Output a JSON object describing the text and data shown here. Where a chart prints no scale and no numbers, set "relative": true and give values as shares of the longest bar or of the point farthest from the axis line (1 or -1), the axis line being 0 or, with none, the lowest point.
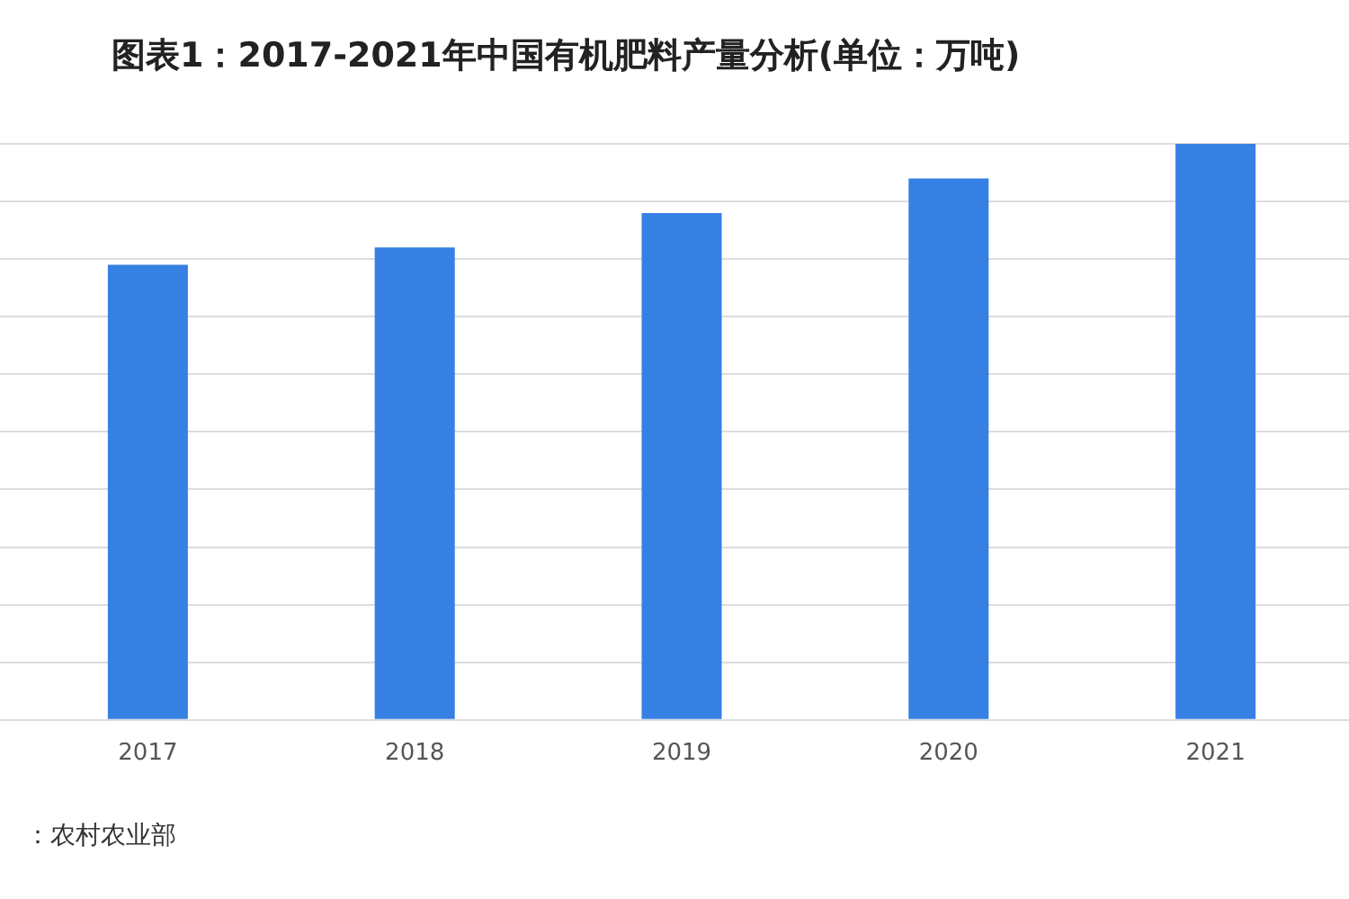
{
  "chart_data": {
    "type": "bar",
    "title": "图表1：2017-2021年中国有机肥料产量分析(单位：万吨)",
    "categories": [
      "2017",
      "2018",
      "2019",
      "2020",
      "2021"
    ],
    "values": [
      0.79,
      0.82,
      0.88,
      0.94,
      1
    ],
    "color": "#3680e4",
    "relative": true,
    "grid": "y",
    "annotations": [
      "：农村农业部"
    ]
  }
}
